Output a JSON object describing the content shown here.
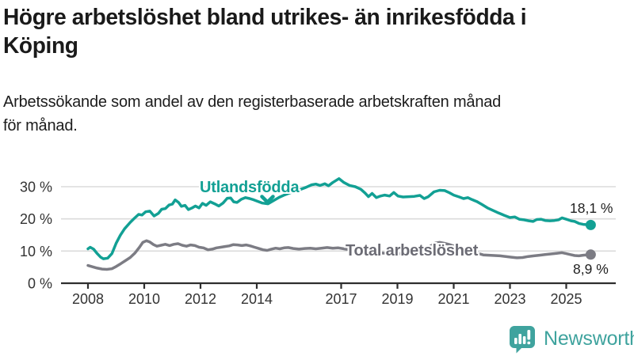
{
  "header": {
    "title_line1": "Högre arbetslöshet bland utrikes- än inrikesfödda i",
    "title_line2": "Köping",
    "subtitle_line1": "Arbetssökande som andel av den registerbaserade arbetskraften månad",
    "subtitle_line2": "för månad."
  },
  "colors": {
    "foreign_line": "#12a094",
    "total_line": "#7c7c84",
    "foreign_label": "#12a094",
    "total_label": "#6c6c75",
    "grid": "#dbdbdb",
    "axis": "#2e2e2e",
    "tick_text": "#333333",
    "annotation_text": "#1f1f1f",
    "logo": "#3fa39e"
  },
  "chart_data": {
    "type": "line",
    "title": "Högre arbetslöshet bland utrikes- än inrikesfödda i Köping",
    "subtitle": "Arbetssökande som andel av den registerbaserade arbetskraften månad för månad.",
    "unit": "%",
    "grid": "horizontal-only",
    "xlim": [
      2007.05,
      2026.75
    ],
    "ylim": [
      0,
      34
    ],
    "x_ticks": [
      "2008",
      "2010",
      "2012",
      "2014",
      "2017",
      "2019",
      "2021",
      "2023",
      "2025"
    ],
    "x_tick_years": [
      2008,
      2010,
      2012,
      2014,
      2017,
      2019,
      2021,
      2023,
      2025
    ],
    "y_ticks": [
      {
        "value": 0,
        "label": "0 %"
      },
      {
        "value": 10,
        "label": "10 %"
      },
      {
        "value": 20,
        "label": "20 %"
      },
      {
        "value": 30,
        "label": "30 %"
      }
    ],
    "series": [
      {
        "id": "utlandsfodda",
        "name": "Utlandsfödda",
        "end_label": "18,1 %",
        "end_value": 18.1,
        "points": [
          [
            2008.0,
            10.7
          ],
          [
            2008.08,
            11.2
          ],
          [
            2008.2,
            10.6
          ],
          [
            2008.33,
            9.2
          ],
          [
            2008.45,
            8.1
          ],
          [
            2008.55,
            7.6
          ],
          [
            2008.7,
            7.8
          ],
          [
            2008.85,
            9.2
          ],
          [
            2009.0,
            12.4
          ],
          [
            2009.15,
            14.9
          ],
          [
            2009.3,
            16.9
          ],
          [
            2009.5,
            18.9
          ],
          [
            2009.65,
            20.2
          ],
          [
            2009.8,
            21.4
          ],
          [
            2009.92,
            21.2
          ],
          [
            2010.05,
            22.2
          ],
          [
            2010.2,
            22.4
          ],
          [
            2010.35,
            20.9
          ],
          [
            2010.5,
            21.7
          ],
          [
            2010.62,
            23.0
          ],
          [
            2010.75,
            23.2
          ],
          [
            2010.88,
            24.3
          ],
          [
            2011.0,
            24.6
          ],
          [
            2011.1,
            25.9
          ],
          [
            2011.22,
            25.1
          ],
          [
            2011.32,
            23.9
          ],
          [
            2011.45,
            24.2
          ],
          [
            2011.57,
            22.9
          ],
          [
            2011.7,
            23.4
          ],
          [
            2011.82,
            24.0
          ],
          [
            2011.95,
            23.4
          ],
          [
            2012.07,
            24.8
          ],
          [
            2012.2,
            24.2
          ],
          [
            2012.35,
            25.3
          ],
          [
            2012.5,
            24.7
          ],
          [
            2012.65,
            24.0
          ],
          [
            2012.8,
            24.9
          ],
          [
            2012.95,
            26.4
          ],
          [
            2013.07,
            26.5
          ],
          [
            2013.18,
            25.3
          ],
          [
            2013.3,
            25.1
          ],
          [
            2013.45,
            26.1
          ],
          [
            2013.6,
            26.6
          ],
          [
            2013.75,
            26.3
          ],
          [
            2013.9,
            25.9
          ],
          [
            2014.05,
            25.4
          ],
          [
            2014.2,
            24.9
          ],
          [
            2014.4,
            24.7
          ],
          [
            2014.6,
            25.7
          ],
          [
            2014.8,
            26.7
          ],
          [
            2015.0,
            27.5
          ],
          [
            2015.25,
            28.3
          ],
          [
            2015.5,
            29.0
          ],
          [
            2015.75,
            29.8
          ],
          [
            2015.95,
            30.6
          ],
          [
            2016.1,
            30.8
          ],
          [
            2016.25,
            30.4
          ],
          [
            2016.42,
            30.9
          ],
          [
            2016.55,
            30.3
          ],
          [
            2016.7,
            31.3
          ],
          [
            2016.92,
            32.5
          ],
          [
            2017.1,
            31.3
          ],
          [
            2017.3,
            30.4
          ],
          [
            2017.5,
            30.0
          ],
          [
            2017.7,
            29.2
          ],
          [
            2017.85,
            28.0
          ],
          [
            2017.97,
            26.9
          ],
          [
            2018.1,
            27.9
          ],
          [
            2018.25,
            26.6
          ],
          [
            2018.4,
            27.1
          ],
          [
            2018.55,
            27.4
          ],
          [
            2018.72,
            27.1
          ],
          [
            2018.87,
            28.2
          ],
          [
            2019.02,
            27.1
          ],
          [
            2019.2,
            26.8
          ],
          [
            2019.4,
            26.9
          ],
          [
            2019.6,
            27.0
          ],
          [
            2019.8,
            27.3
          ],
          [
            2019.95,
            26.3
          ],
          [
            2020.1,
            26.9
          ],
          [
            2020.3,
            28.4
          ],
          [
            2020.5,
            28.9
          ],
          [
            2020.68,
            28.8
          ],
          [
            2020.85,
            28.1
          ],
          [
            2021.0,
            27.4
          ],
          [
            2021.2,
            26.8
          ],
          [
            2021.35,
            26.3
          ],
          [
            2021.5,
            26.6
          ],
          [
            2021.65,
            26.0
          ],
          [
            2021.82,
            25.4
          ],
          [
            2022.0,
            24.5
          ],
          [
            2022.2,
            23.4
          ],
          [
            2022.4,
            22.6
          ],
          [
            2022.6,
            21.8
          ],
          [
            2022.8,
            21.1
          ],
          [
            2023.0,
            20.4
          ],
          [
            2023.17,
            20.6
          ],
          [
            2023.33,
            19.9
          ],
          [
            2023.5,
            19.7
          ],
          [
            2023.67,
            19.4
          ],
          [
            2023.82,
            19.2
          ],
          [
            2023.95,
            19.8
          ],
          [
            2024.1,
            19.9
          ],
          [
            2024.25,
            19.5
          ],
          [
            2024.42,
            19.4
          ],
          [
            2024.58,
            19.5
          ],
          [
            2024.72,
            19.7
          ],
          [
            2024.85,
            20.3
          ],
          [
            2025.0,
            19.9
          ],
          [
            2025.17,
            19.4
          ],
          [
            2025.3,
            19.2
          ],
          [
            2025.45,
            18.6
          ],
          [
            2025.6,
            18.3
          ],
          [
            2025.87,
            18.1
          ]
        ]
      },
      {
        "id": "total-arbetsloshet",
        "name": "Total arbetslöshet",
        "end_label": "8,9 %",
        "end_value": 8.9,
        "points": [
          [
            2008.0,
            5.5
          ],
          [
            2008.17,
            5.1
          ],
          [
            2008.33,
            4.7
          ],
          [
            2008.5,
            4.4
          ],
          [
            2008.67,
            4.3
          ],
          [
            2008.85,
            4.5
          ],
          [
            2009.0,
            5.2
          ],
          [
            2009.17,
            6.1
          ],
          [
            2009.33,
            7.0
          ],
          [
            2009.5,
            8.0
          ],
          [
            2009.67,
            9.4
          ],
          [
            2009.83,
            11.2
          ],
          [
            2009.95,
            12.7
          ],
          [
            2010.08,
            13.2
          ],
          [
            2010.2,
            12.8
          ],
          [
            2010.33,
            12.0
          ],
          [
            2010.45,
            11.5
          ],
          [
            2010.6,
            11.8
          ],
          [
            2010.75,
            12.1
          ],
          [
            2010.9,
            11.7
          ],
          [
            2011.05,
            12.1
          ],
          [
            2011.2,
            12.3
          ],
          [
            2011.35,
            11.8
          ],
          [
            2011.5,
            11.5
          ],
          [
            2011.65,
            11.9
          ],
          [
            2011.8,
            11.7
          ],
          [
            2011.95,
            11.2
          ],
          [
            2012.1,
            11.0
          ],
          [
            2012.27,
            10.4
          ],
          [
            2012.42,
            10.6
          ],
          [
            2012.57,
            11.0
          ],
          [
            2012.72,
            11.2
          ],
          [
            2012.87,
            11.4
          ],
          [
            2013.02,
            11.6
          ],
          [
            2013.17,
            12.0
          ],
          [
            2013.32,
            11.9
          ],
          [
            2013.47,
            11.7
          ],
          [
            2013.62,
            11.9
          ],
          [
            2013.77,
            11.6
          ],
          [
            2013.92,
            11.2
          ],
          [
            2014.07,
            10.8
          ],
          [
            2014.22,
            10.4
          ],
          [
            2014.37,
            10.2
          ],
          [
            2014.52,
            10.6
          ],
          [
            2014.67,
            10.9
          ],
          [
            2014.82,
            10.7
          ],
          [
            2014.97,
            11.0
          ],
          [
            2015.12,
            11.1
          ],
          [
            2015.3,
            10.8
          ],
          [
            2015.5,
            10.6
          ],
          [
            2015.7,
            10.8
          ],
          [
            2015.9,
            10.9
          ],
          [
            2016.1,
            10.7
          ],
          [
            2016.3,
            10.9
          ],
          [
            2016.5,
            11.1
          ],
          [
            2016.7,
            10.9
          ],
          [
            2016.9,
            11.0
          ],
          [
            2017.1,
            10.7
          ],
          [
            2017.3,
            10.4
          ],
          [
            2017.5,
            10.2
          ],
          [
            2017.75,
            9.9
          ],
          [
            2018.0,
            9.7
          ],
          [
            2018.3,
            9.5
          ],
          [
            2018.6,
            9.3
          ],
          [
            2018.9,
            9.2
          ],
          [
            2019.2,
            9.2
          ],
          [
            2019.5,
            9.3
          ],
          [
            2019.75,
            9.5
          ],
          [
            2019.95,
            9.9
          ],
          [
            2020.15,
            11.4
          ],
          [
            2020.35,
            12.5
          ],
          [
            2020.5,
            12.7
          ],
          [
            2020.68,
            12.4
          ],
          [
            2020.85,
            12.0
          ],
          [
            2021.05,
            11.4
          ],
          [
            2021.25,
            10.8
          ],
          [
            2021.45,
            10.2
          ],
          [
            2021.65,
            9.8
          ],
          [
            2021.85,
            9.3
          ],
          [
            2022.05,
            8.8
          ],
          [
            2022.25,
            8.7
          ],
          [
            2022.45,
            8.6
          ],
          [
            2022.65,
            8.5
          ],
          [
            2022.85,
            8.3
          ],
          [
            2023.05,
            8.1
          ],
          [
            2023.25,
            7.9
          ],
          [
            2023.45,
            8.0
          ],
          [
            2023.65,
            8.3
          ],
          [
            2023.85,
            8.5
          ],
          [
            2024.05,
            8.7
          ],
          [
            2024.25,
            8.9
          ],
          [
            2024.45,
            9.1
          ],
          [
            2024.65,
            9.3
          ],
          [
            2024.85,
            9.5
          ],
          [
            2025.0,
            9.2
          ],
          [
            2025.15,
            8.9
          ],
          [
            2025.3,
            8.6
          ],
          [
            2025.45,
            8.5
          ],
          [
            2025.6,
            8.7
          ],
          [
            2025.87,
            8.9
          ]
        ]
      }
    ],
    "legend_position": "inline-labels"
  },
  "footer": {
    "brand": "Newsworthy"
  }
}
